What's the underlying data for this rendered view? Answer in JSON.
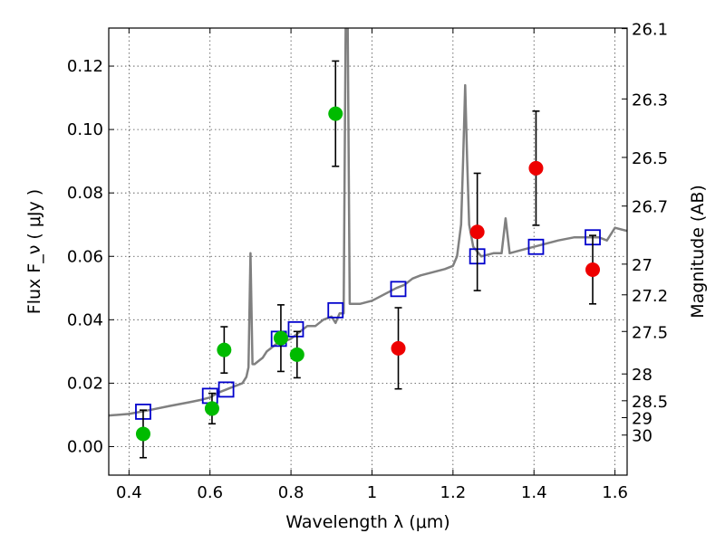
{
  "chart_data": {
    "type": "scatter",
    "xlabel": "Wavelength λ (μm)",
    "ylabel": "Flux F_ν ( μJy )",
    "y2label": "Magnitude (AB)",
    "xlim": [
      0.35,
      1.63
    ],
    "ylim": [
      -0.009,
      0.132
    ],
    "x_ticks": [
      "0.4",
      "0.6",
      "0.8",
      "1",
      "1.2",
      "1.4",
      "1.6"
    ],
    "y_ticks": [
      "0.00",
      "0.02",
      "0.04",
      "0.06",
      "0.08",
      "0.10",
      "0.12"
    ],
    "y2_ticks": [
      "26.1",
      "26.3",
      "26.5",
      "26.7",
      "27",
      "27.2",
      "27.5",
      "28",
      "28.5",
      "29",
      "30"
    ],
    "grid": true,
    "colors": {
      "spectrum": "#808080",
      "model": "#0000cc",
      "green": "#00bb00",
      "red": "#ee0000",
      "errorbar": "#000000"
    },
    "series": [
      {
        "kind": "spectrum-line",
        "points": [
          [
            0.35,
            0.0098
          ],
          [
            0.4,
            0.0103
          ],
          [
            0.45,
            0.0115
          ],
          [
            0.5,
            0.0128
          ],
          [
            0.55,
            0.014
          ],
          [
            0.58,
            0.0148
          ],
          [
            0.6,
            0.0155
          ],
          [
            0.62,
            0.017
          ],
          [
            0.64,
            0.018
          ],
          [
            0.66,
            0.019
          ],
          [
            0.68,
            0.02
          ],
          [
            0.69,
            0.022
          ],
          [
            0.695,
            0.025
          ],
          [
            0.7,
            0.061
          ],
          [
            0.705,
            0.026
          ],
          [
            0.71,
            0.026
          ],
          [
            0.72,
            0.027
          ],
          [
            0.73,
            0.028
          ],
          [
            0.74,
            0.03
          ],
          [
            0.75,
            0.031
          ],
          [
            0.76,
            0.032
          ],
          [
            0.77,
            0.033
          ],
          [
            0.78,
            0.033
          ],
          [
            0.8,
            0.034
          ],
          [
            0.82,
            0.036
          ],
          [
            0.84,
            0.038
          ],
          [
            0.86,
            0.038
          ],
          [
            0.88,
            0.04
          ],
          [
            0.9,
            0.041
          ],
          [
            0.91,
            0.039
          ],
          [
            0.92,
            0.042
          ],
          [
            0.93,
            0.042
          ],
          [
            0.935,
            0.132
          ],
          [
            0.94,
            0.132
          ],
          [
            0.945,
            0.045
          ],
          [
            0.95,
            0.045
          ],
          [
            0.97,
            0.045
          ],
          [
            1.0,
            0.046
          ],
          [
            1.03,
            0.048
          ],
          [
            1.06,
            0.05
          ],
          [
            1.08,
            0.051
          ],
          [
            1.1,
            0.053
          ],
          [
            1.12,
            0.054
          ],
          [
            1.15,
            0.055
          ],
          [
            1.18,
            0.056
          ],
          [
            1.2,
            0.057
          ],
          [
            1.21,
            0.06
          ],
          [
            1.22,
            0.07
          ],
          [
            1.225,
            0.09
          ],
          [
            1.23,
            0.114
          ],
          [
            1.235,
            0.09
          ],
          [
            1.24,
            0.07
          ],
          [
            1.25,
            0.063
          ],
          [
            1.27,
            0.06
          ],
          [
            1.3,
            0.061
          ],
          [
            1.32,
            0.061
          ],
          [
            1.33,
            0.072
          ],
          [
            1.34,
            0.061
          ],
          [
            1.37,
            0.062
          ],
          [
            1.4,
            0.063
          ],
          [
            1.43,
            0.064
          ],
          [
            1.46,
            0.065
          ],
          [
            1.5,
            0.066
          ],
          [
            1.53,
            0.066
          ],
          [
            1.56,
            0.066
          ],
          [
            1.58,
            0.065
          ],
          [
            1.6,
            0.069
          ],
          [
            1.63,
            0.068
          ]
        ]
      },
      {
        "kind": "model-squares",
        "points": [
          [
            0.435,
            0.011
          ],
          [
            0.6,
            0.016
          ],
          [
            0.64,
            0.018
          ],
          [
            0.77,
            0.034
          ],
          [
            0.812,
            0.037
          ],
          [
            0.91,
            0.043
          ],
          [
            1.065,
            0.0497
          ],
          [
            1.26,
            0.06
          ],
          [
            1.405,
            0.063
          ],
          [
            1.545,
            0.066
          ]
        ]
      },
      {
        "kind": "green-points",
        "points": [
          {
            "x": 0.435,
            "y": 0.004,
            "err": 0.0075
          },
          {
            "x": 0.605,
            "y": 0.012,
            "err": 0.0048
          },
          {
            "x": 0.635,
            "y": 0.0305,
            "err": 0.0073
          },
          {
            "x": 0.775,
            "y": 0.0342,
            "err": 0.0105
          },
          {
            "x": 0.815,
            "y": 0.029,
            "err": 0.0073
          },
          {
            "x": 0.91,
            "y": 0.105,
            "err": 0.0166
          }
        ]
      },
      {
        "kind": "red-points",
        "points": [
          {
            "x": 1.065,
            "y": 0.031,
            "err": 0.0128
          },
          {
            "x": 1.26,
            "y": 0.0677,
            "err": 0.0185
          },
          {
            "x": 1.405,
            "y": 0.0878,
            "err": 0.018
          },
          {
            "x": 1.545,
            "y": 0.0558,
            "err": 0.0108
          }
        ]
      }
    ]
  }
}
